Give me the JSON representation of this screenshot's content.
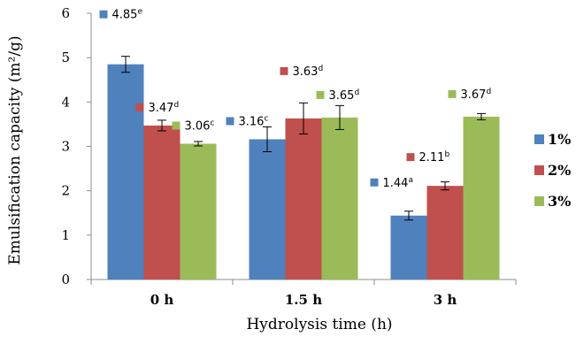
{
  "chart_data": {
    "type": "bar",
    "categories": [
      "0 h",
      "1.5 h",
      "3 h"
    ],
    "series": [
      {
        "name": "1%",
        "values": [
          4.85,
          3.16,
          1.44
        ],
        "errors": [
          0.18,
          0.28,
          0.1
        ],
        "labels": [
          "4.85",
          "3.16",
          "1.44"
        ],
        "sups": [
          "e",
          "c",
          "a"
        ]
      },
      {
        "name": "2%",
        "values": [
          3.47,
          3.63,
          2.11
        ],
        "errors": [
          0.12,
          0.35,
          0.09
        ],
        "labels": [
          "3.47",
          "3.63",
          "2.11"
        ],
        "sups": [
          "d",
          "d",
          "b"
        ]
      },
      {
        "name": "3%",
        "values": [
          3.06,
          3.65,
          3.67
        ],
        "errors": [
          0.05,
          0.27,
          0.07
        ],
        "labels": [
          "3.06",
          "3.65",
          "3.67"
        ],
        "sups": [
          "c",
          "d",
          "d"
        ]
      }
    ],
    "colors": [
      "#4f81bd",
      "#c0504d",
      "#9bbb59"
    ],
    "xlabel": "Hydrolysis time (h)",
    "ylabel": "Emulsification capacity (m²/g)",
    "ylim": [
      0,
      6
    ],
    "yticks": [
      "0",
      "1",
      "2",
      "3",
      "4",
      "5",
      "6"
    ],
    "grid": false,
    "legend": "right"
  }
}
